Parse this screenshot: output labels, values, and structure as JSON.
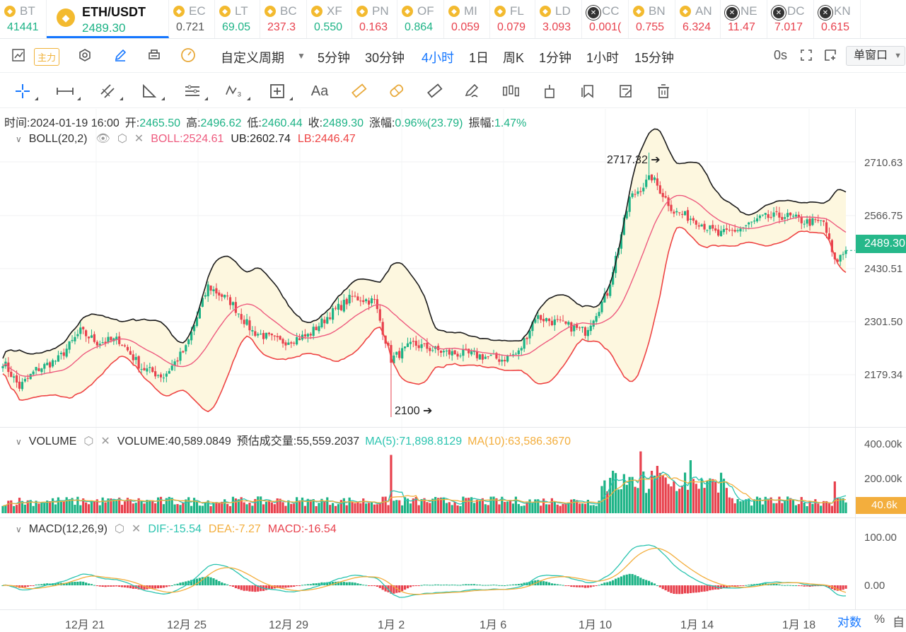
{
  "colors": {
    "up": "#1db386",
    "down": "#e8414d",
    "boll_mid": "#ee5a7e",
    "boll_up": "#1b1b1b",
    "boll_lb": "#ee4444",
    "ma5": "#2bc4b0",
    "ma10": "#f3ae3d",
    "dif": "#2bc4b0",
    "dea": "#f3ae3d",
    "accent": "#1677ff"
  },
  "ticker": [
    {
      "symbol": "BT",
      "price": "41441",
      "color": "#1db386",
      "icon": "bnb-icon"
    },
    {
      "symbol": "ETH/USDT",
      "price": "2489.30",
      "color": "#1db386",
      "icon": "bnb-icon",
      "active": true
    },
    {
      "symbol": "EC",
      "price": "0.721",
      "color": "#555",
      "icon": "bnb-icon"
    },
    {
      "symbol": "LT",
      "price": "69.05",
      "color": "#1db386",
      "icon": "bnb-icon"
    },
    {
      "symbol": "BC",
      "price": "237.3",
      "color": "#e8414d",
      "icon": "bnb-icon"
    },
    {
      "symbol": "XF",
      "price": "0.550",
      "color": "#1db386",
      "icon": "bnb-icon"
    },
    {
      "symbol": "PN",
      "price": "0.163",
      "color": "#e8414d",
      "icon": "bnb-icon"
    },
    {
      "symbol": "OF",
      "price": "0.864",
      "color": "#1db386",
      "icon": "bnb-icon"
    },
    {
      "symbol": "MI",
      "price": "0.059",
      "color": "#e8414d",
      "icon": "bnb-icon"
    },
    {
      "symbol": "FL",
      "price": "0.079",
      "color": "#e8414d",
      "icon": "bnb-icon"
    },
    {
      "symbol": "LD",
      "price": "3.093",
      "color": "#e8414d",
      "icon": "bnb-icon"
    },
    {
      "symbol": "CC",
      "price": "0.001(",
      "color": "#e8414d",
      "icon": "dark-icon"
    },
    {
      "symbol": "BN",
      "price": "0.755",
      "color": "#e8414d",
      "icon": "bnb-icon"
    },
    {
      "symbol": "AN",
      "price": "6.324",
      "color": "#e8414d",
      "icon": "bnb-icon"
    },
    {
      "symbol": "NE",
      "price": "11.47",
      "color": "#e8414d",
      "icon": "dark-icon"
    },
    {
      "symbol": "DC",
      "price": "7.017",
      "color": "#e8414d",
      "icon": "dark-icon"
    },
    {
      "symbol": "KN",
      "price": "0.615",
      "color": "#e8414d",
      "icon": "dark-icon"
    }
  ],
  "toolbar": {
    "main_force": "主力",
    "custom_period": "自定义周期",
    "periods": [
      "5分钟",
      "30分钟",
      "4小时",
      "1日",
      "周K",
      "1分钟",
      "1小时",
      "15分钟"
    ],
    "selected_period": "4小时",
    "countdown": "0s",
    "window_mode": "单窗口"
  },
  "ohlc": {
    "time_label": "时间:",
    "time": "2024-01-19 16:00",
    "open_label": "开:",
    "open": "2465.50",
    "high_label": "高:",
    "high": "2496.62",
    "low_label": "低:",
    "low": "2460.44",
    "close_label": "收:",
    "close": "2489.30",
    "chg_label": "涨幅:",
    "chg": "0.96%(23.79)",
    "amp_label": "振幅:",
    "amp": "1.47%"
  },
  "boll_legend": {
    "name": "BOLL(20,2)",
    "mid": "BOLL:2524.61",
    "ub": "UB:2602.74",
    "lb": "LB:2446.47"
  },
  "vol_legend": {
    "name": "VOLUME",
    "vol": "VOLUME:40,589.0849",
    "est": "预估成交量:55,559.2037",
    "ma5": "MA(5):71,898.8129",
    "ma10": "MA(10):63,586.3670"
  },
  "macd_legend": {
    "name": "MACD(12,26,9)",
    "dif": "DIF:-15.54",
    "dea": "DEA:-7.27",
    "macd": "MACD:-16.54"
  },
  "price_axis": [
    "2710.63",
    "2566.75",
    "2430.51",
    "2301.50",
    "2179.34"
  ],
  "vol_axis": [
    "400.00k",
    "200.00k"
  ],
  "macd_axis": [
    "100.00",
    "0.00"
  ],
  "current_price": "2489.30",
  "current_vol": "40.6k",
  "x_axis": [
    "12月 21",
    "12月 25",
    "12月 29",
    "1月 2",
    "1月 6",
    "1月 10",
    "1月 14",
    "1月 18"
  ],
  "annotations": {
    "high": "2717.32",
    "low": "2100"
  },
  "bottom": {
    "log": "对数",
    "pct": "%",
    "auto": "自"
  },
  "chart_data": {
    "type": "candlestick",
    "title": "ETH/USDT 4小时",
    "price_range": [
      2100,
      2760
    ],
    "keypoints": [
      [
        0,
        2230
      ],
      [
        6,
        2170
      ],
      [
        12,
        2210
      ],
      [
        20,
        2235
      ],
      [
        28,
        2300
      ],
      [
        34,
        2275
      ],
      [
        42,
        2280
      ],
      [
        50,
        2215
      ],
      [
        58,
        2195
      ],
      [
        66,
        2260
      ],
      [
        74,
        2405
      ],
      [
        82,
        2370
      ],
      [
        90,
        2300
      ],
      [
        100,
        2275
      ],
      [
        110,
        2290
      ],
      [
        118,
        2340
      ],
      [
        126,
        2380
      ],
      [
        134,
        2370
      ],
      [
        140,
        2235
      ],
      [
        148,
        2270
      ],
      [
        160,
        2250
      ],
      [
        170,
        2245
      ],
      [
        180,
        2235
      ],
      [
        186,
        2250
      ],
      [
        192,
        2335
      ],
      [
        200,
        2320
      ],
      [
        210,
        2300
      ],
      [
        218,
        2390
      ],
      [
        226,
        2610
      ],
      [
        234,
        2660
      ],
      [
        242,
        2580
      ],
      [
        250,
        2560
      ],
      [
        258,
        2525
      ],
      [
        266,
        2540
      ],
      [
        274,
        2565
      ],
      [
        282,
        2570
      ],
      [
        290,
        2555
      ],
      [
        296,
        2555
      ],
      [
        300,
        2460
      ],
      [
        304,
        2489
      ]
    ],
    "extremes": {
      "high": 2717.32,
      "low": 2100
    }
  }
}
